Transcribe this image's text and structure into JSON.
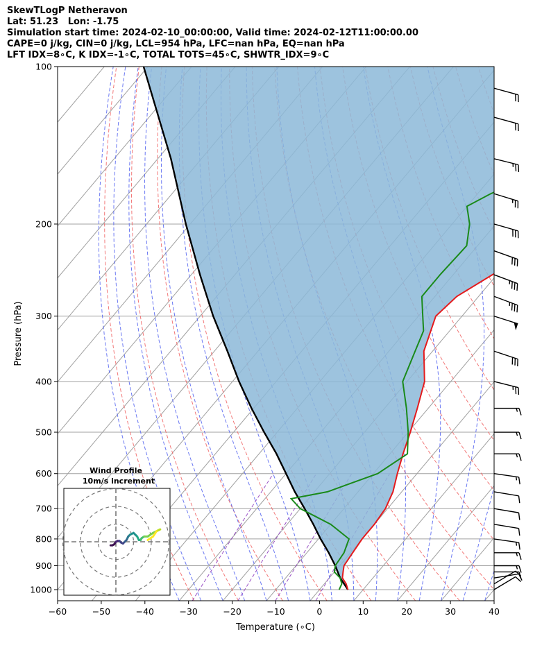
{
  "header": {
    "line1": "SkewTLogP Netheravon",
    "line2": "Lat: 51.23   Lon: -1.75",
    "line3": "Simulation start time: 2024-02-10_00:00:00, Valid time: 2024-02-12T11:00:00.00",
    "line4": "CAPE=0 j/kg, CIN=0 j/kg, LCL=954 hPa, LFC=nan hPa, EQ=nan hPa",
    "line5": "LFT IDX=8∘C, K IDX=-1∘C, TOTAL TOTS=45∘C, SHWTR_IDX=9∘C"
  },
  "chart_data": {
    "type": "line",
    "xlabel": "Temperature (∘C)",
    "ylabel": "Pressure (hPa)",
    "xlim": [
      -60,
      40
    ],
    "ylim": [
      1040,
      100
    ],
    "y_scale": "log",
    "grid": true,
    "x_ticks": [
      "−60",
      "−50",
      "−40",
      "−30",
      "−20",
      "−10",
      "0",
      "10",
      "20",
      "30",
      "40"
    ],
    "y_ticks": [
      [
        "100",
        100
      ],
      [
        "200",
        200
      ],
      [
        "300",
        300
      ],
      [
        "400",
        400
      ],
      [
        "500",
        500
      ],
      [
        "600",
        600
      ],
      [
        "700",
        700
      ],
      [
        "800",
        800
      ],
      [
        "900",
        900
      ],
      [
        "1000",
        1000
      ]
    ],
    "colors": {
      "temperature": "#e41a1c",
      "dewpoint": "#1a8a1a",
      "parcel": "#000000",
      "cape_fill": "#8cb8d8",
      "isotherm": "#a0a0a0",
      "dry_adiabat": "#f06060",
      "moist_adiabat": "#5060f0",
      "mixing_ratio": "#9040c0"
    },
    "series": [
      {
        "role": "temperature",
        "points": [
          [
            1000,
            6.5
          ],
          [
            975,
            5
          ],
          [
            950,
            3
          ],
          [
            925,
            2
          ],
          [
            900,
            1
          ],
          [
            850,
            0.5
          ],
          [
            800,
            0
          ],
          [
            750,
            0
          ],
          [
            700,
            -0.5
          ],
          [
            650,
            -2
          ],
          [
            600,
            -4.5
          ],
          [
            550,
            -7
          ],
          [
            500,
            -9.5
          ],
          [
            450,
            -12.5
          ],
          [
            400,
            -16
          ],
          [
            350,
            -22
          ],
          [
            300,
            -26
          ],
          [
            275,
            -25
          ],
          [
            250,
            -21
          ],
          [
            225,
            -15
          ],
          [
            200,
            -8
          ],
          [
            175,
            1
          ],
          [
            150,
            7
          ],
          [
            125,
            12
          ],
          [
            100,
            16
          ]
        ]
      },
      {
        "role": "dewpoint",
        "points": [
          [
            1000,
            4.5
          ],
          [
            975,
            4
          ],
          [
            950,
            2.5
          ],
          [
            925,
            0
          ],
          [
            900,
            -1
          ],
          [
            850,
            -1.5
          ],
          [
            800,
            -3
          ],
          [
            750,
            -10
          ],
          [
            700,
            -20
          ],
          [
            670,
            -24
          ],
          [
            650,
            -17
          ],
          [
            600,
            -9
          ],
          [
            550,
            -6
          ],
          [
            500,
            -10
          ],
          [
            450,
            -15
          ],
          [
            400,
            -21
          ],
          [
            350,
            -24
          ],
          [
            320,
            -26
          ],
          [
            300,
            -29
          ],
          [
            275,
            -33
          ],
          [
            250,
            -33
          ],
          [
            220,
            -32.5
          ],
          [
            200,
            -36
          ],
          [
            185,
            -40
          ],
          [
            175,
            -37
          ],
          [
            150,
            -25
          ],
          [
            125,
            -14
          ],
          [
            100,
            -4
          ]
        ]
      },
      {
        "role": "parcel",
        "points": [
          [
            1000,
            6.5
          ],
          [
            950,
            2.5
          ],
          [
            900,
            -1
          ],
          [
            850,
            -5
          ],
          [
            800,
            -9.5
          ],
          [
            750,
            -14
          ],
          [
            700,
            -19
          ],
          [
            650,
            -24.5
          ],
          [
            600,
            -30
          ],
          [
            550,
            -36
          ],
          [
            500,
            -43
          ],
          [
            450,
            -50.5
          ],
          [
            400,
            -58.5
          ],
          [
            350,
            -67
          ],
          [
            300,
            -77
          ],
          [
            250,
            -88
          ],
          [
            200,
            -101
          ],
          [
            150,
            -117
          ],
          [
            100,
            -141
          ]
        ]
      }
    ],
    "wind_barbs": [
      {
        "p": 1000,
        "u": -5,
        "v": -3
      },
      {
        "p": 975,
        "u": -5,
        "v": -3
      },
      {
        "p": 950,
        "u": -6,
        "v": -1
      },
      {
        "p": 925,
        "u": -6,
        "v": 0
      },
      {
        "p": 900,
        "u": -7,
        "v": 0
      },
      {
        "p": 850,
        "u": -7,
        "v": 0
      },
      {
        "p": 800,
        "u": -7,
        "v": 1
      },
      {
        "p": 750,
        "u": -6,
        "v": 1
      },
      {
        "p": 700,
        "u": -6,
        "v": 1
      },
      {
        "p": 650,
        "u": -6,
        "v": 1
      },
      {
        "p": 600,
        "u": -7,
        "v": 1
      },
      {
        "p": 550,
        "u": -7,
        "v": 0
      },
      {
        "p": 500,
        "u": -8,
        "v": 0
      },
      {
        "p": 450,
        "u": -8,
        "v": 0
      },
      {
        "p": 400,
        "u": -12,
        "v": 3
      },
      {
        "p": 350,
        "u": -15,
        "v": 5
      },
      {
        "p": 300,
        "u": -25,
        "v": 8
      },
      {
        "p": 275,
        "u": -16,
        "v": 6
      },
      {
        "p": 250,
        "u": -16,
        "v": 6
      },
      {
        "p": 225,
        "u": -14,
        "v": 5
      },
      {
        "p": 200,
        "u": -14,
        "v": 4
      },
      {
        "p": 175,
        "u": -13,
        "v": 4
      },
      {
        "p": 150,
        "u": -12,
        "v": 3
      },
      {
        "p": 125,
        "u": -11,
        "v": 3
      },
      {
        "p": 110,
        "u": -11,
        "v": 3
      }
    ],
    "inset": {
      "title": "Wind Profile",
      "subtitle": "10m/s increment",
      "rings_ms": [
        10,
        20,
        30
      ],
      "hodograph": [
        [
          -3,
          2
        ],
        [
          -2,
          2
        ],
        [
          -1,
          1.5
        ],
        [
          0,
          0
        ],
        [
          1,
          -0.5
        ],
        [
          2,
          -0.5
        ],
        [
          3,
          0.5
        ],
        [
          4,
          1
        ],
        [
          5,
          0
        ],
        [
          6,
          -1
        ],
        [
          6.5,
          -2
        ],
        [
          7,
          -3
        ],
        [
          8,
          -4
        ],
        [
          10,
          -5
        ],
        [
          11,
          -4
        ],
        [
          12,
          -3
        ],
        [
          13,
          -1
        ],
        [
          14,
          -1
        ],
        [
          14.5,
          -2
        ],
        [
          16,
          -3
        ],
        [
          18,
          -3
        ],
        [
          21,
          -5
        ],
        [
          23,
          -6
        ],
        [
          25,
          -7
        ],
        [
          23,
          -6
        ],
        [
          21,
          -3
        ],
        [
          18,
          -1
        ]
      ]
    }
  }
}
